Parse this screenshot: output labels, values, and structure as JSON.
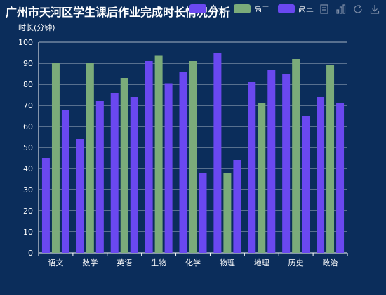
{
  "title": "广州市天河区学生课后作业完成时长情况分析",
  "toolbox": [
    "data-view-icon",
    "bar-chart-icon",
    "restore-icon",
    "download-icon"
  ],
  "chart_data": {
    "type": "bar",
    "title": "广州市天河区学生课后作业完成时长情况分析",
    "ylabel": "时长(分钟)",
    "xlabel": "",
    "ylim": [
      0,
      100
    ],
    "yticks": [
      0,
      10,
      20,
      30,
      40,
      50,
      60,
      70,
      80,
      90,
      100
    ],
    "grid": true,
    "legend_position": "top-right",
    "categories": [
      "语文",
      "数学",
      "英语",
      "生物",
      "化学",
      "物理",
      "地理",
      "历史",
      "政治"
    ],
    "series": [
      {
        "name": "高一",
        "color": "#6a48f0",
        "values": [
          45,
          54,
          76,
          91,
          86,
          95,
          81,
          85,
          74
        ]
      },
      {
        "name": "高二",
        "color": "#7bab7a",
        "values": [
          90,
          90,
          83,
          93.5,
          91,
          38,
          71,
          92,
          89
        ]
      },
      {
        "name": "高三",
        "color": "#6a48f0",
        "values": [
          68,
          72,
          74,
          80.5,
          38,
          44,
          87,
          65,
          71
        ]
      }
    ]
  }
}
